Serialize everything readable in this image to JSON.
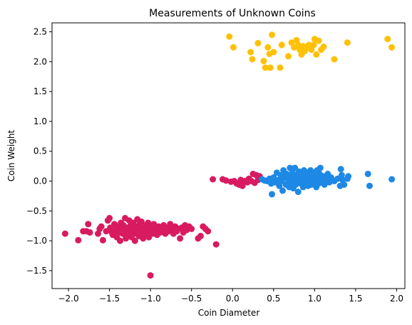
{
  "chart_data": {
    "type": "scatter",
    "title": "Measurements of Unknown Coins",
    "xlabel": "Coin Diameter",
    "ylabel": "Coin Weight",
    "xlim": [
      -2.2,
      2.1
    ],
    "ylim": [
      -1.8,
      2.65
    ],
    "xticks": [
      -2.0,
      -1.5,
      -1.0,
      -0.5,
      0.0,
      0.5,
      1.0,
      1.5,
      2.0
    ],
    "xtick_labels": [
      "−2.0",
      "−1.5",
      "−1.0",
      "−0.5",
      "0.0",
      "0.5",
      "1.0",
      "1.5",
      "2.0"
    ],
    "yticks": [
      -1.5,
      -1.0,
      -0.5,
      0.0,
      0.5,
      1.0,
      1.5,
      2.0,
      2.5
    ],
    "ytick_labels": [
      "−1.5",
      "−1.0",
      "−0.5",
      "0.0",
      "0.5",
      "1.0",
      "1.5",
      "2.0",
      "2.5"
    ],
    "grid": false,
    "series": [
      {
        "color": "#d81b60",
        "points": [
          [
            -2.04,
            -0.88
          ],
          [
            -1.88,
            -0.99
          ],
          [
            -1.82,
            -0.84
          ],
          [
            -1.78,
            -0.84
          ],
          [
            -1.76,
            -0.72
          ],
          [
            -1.74,
            -0.86
          ],
          [
            -1.64,
            -0.88
          ],
          [
            -1.62,
            -0.8
          ],
          [
            -1.6,
            -0.76
          ],
          [
            -1.58,
            -0.99
          ],
          [
            -1.54,
            -0.84
          ],
          [
            -1.52,
            -0.66
          ],
          [
            -1.5,
            -0.62
          ],
          [
            -1.49,
            -0.78
          ],
          [
            -1.47,
            -0.86
          ],
          [
            -1.46,
            -0.9
          ],
          [
            -1.44,
            -0.72
          ],
          [
            -1.43,
            -0.82
          ],
          [
            -1.41,
            -0.94
          ],
          [
            -1.4,
            -0.76
          ],
          [
            -1.39,
            -0.86
          ],
          [
            -1.37,
            -1.0
          ],
          [
            -1.36,
            -0.7
          ],
          [
            -1.35,
            -0.8
          ],
          [
            -1.34,
            -0.88
          ],
          [
            -1.33,
            -0.74
          ],
          [
            -1.31,
            -0.62
          ],
          [
            -1.3,
            -0.96
          ],
          [
            -1.29,
            -0.84
          ],
          [
            -1.28,
            -0.78
          ],
          [
            -1.27,
            -0.9
          ],
          [
            -1.26,
            -0.66
          ],
          [
            -1.25,
            -0.82
          ],
          [
            -1.24,
            -0.74
          ],
          [
            -1.23,
            -0.94
          ],
          [
            -1.22,
            -0.86
          ],
          [
            -1.21,
            -0.7
          ],
          [
            -1.2,
            -0.8
          ],
          [
            -1.19,
            -1.0
          ],
          [
            -1.18,
            -0.76
          ],
          [
            -1.17,
            -0.88
          ],
          [
            -1.16,
            -0.64
          ],
          [
            -1.15,
            -0.84
          ],
          [
            -1.14,
            -0.92
          ],
          [
            -1.13,
            -0.72
          ],
          [
            -1.12,
            -0.8
          ],
          [
            -1.11,
            -0.68
          ],
          [
            -1.1,
            -0.86
          ],
          [
            -1.09,
            -0.96
          ],
          [
            -1.08,
            -0.78
          ],
          [
            -1.07,
            -0.82
          ],
          [
            -1.06,
            -0.9
          ],
          [
            -1.05,
            -0.74
          ],
          [
            -1.04,
            -0.84
          ],
          [
            -1.03,
            -0.7
          ],
          [
            -1.02,
            -0.94
          ],
          [
            -1.01,
            -0.8
          ],
          [
            -1.0,
            -0.86
          ],
          [
            -0.98,
            -0.76
          ],
          [
            -0.97,
            -0.88
          ],
          [
            -0.96,
            -0.72
          ],
          [
            -0.94,
            -0.84
          ],
          [
            -0.93,
            -0.8
          ],
          [
            -0.92,
            -0.9
          ],
          [
            -0.9,
            -0.76
          ],
          [
            -0.88,
            -0.86
          ],
          [
            -0.86,
            -0.82
          ],
          [
            -0.84,
            -0.74
          ],
          [
            -0.82,
            -0.88
          ],
          [
            -0.8,
            -0.78
          ],
          [
            -0.78,
            -0.84
          ],
          [
            -0.76,
            -0.72
          ],
          [
            -0.74,
            -0.8
          ],
          [
            -0.72,
            -0.88
          ],
          [
            -0.7,
            -0.76
          ],
          [
            -0.68,
            -0.84
          ],
          [
            -0.66,
            -0.8
          ],
          [
            -0.64,
            -0.96
          ],
          [
            -0.62,
            -0.78
          ],
          [
            -0.6,
            -0.86
          ],
          [
            -0.58,
            -0.74
          ],
          [
            -0.56,
            -0.82
          ],
          [
            -0.53,
            -0.76
          ],
          [
            -0.5,
            -0.8
          ],
          [
            -0.42,
            -0.96
          ],
          [
            -0.39,
            -0.92
          ],
          [
            -0.36,
            -0.76
          ],
          [
            -0.33,
            -0.8
          ],
          [
            -0.3,
            -0.84
          ],
          [
            -0.2,
            -1.06
          ],
          [
            -1.0,
            -1.58
          ],
          [
            -0.24,
            0.03
          ],
          [
            -0.12,
            0.03
          ],
          [
            -0.08,
            0.01
          ],
          [
            -0.02,
            -0.01
          ],
          [
            0.02,
            0.0
          ],
          [
            0.05,
            -0.04
          ],
          [
            0.08,
            -0.06
          ],
          [
            0.1,
            0.02
          ],
          [
            0.12,
            -0.08
          ],
          [
            0.15,
            0.0
          ],
          [
            0.18,
            -0.02
          ],
          [
            0.2,
            0.04
          ],
          [
            0.23,
            0.0
          ],
          [
            0.25,
            0.12
          ],
          [
            0.27,
            -0.03
          ],
          [
            0.29,
            0.1
          ],
          [
            0.31,
            0.02
          ],
          [
            0.33,
            0.08
          ]
        ]
      },
      {
        "color": "#1e88e5",
        "points": [
          [
            0.36,
            0.03
          ],
          [
            0.39,
            0.01
          ],
          [
            0.42,
            0.0
          ],
          [
            0.45,
            0.04
          ],
          [
            0.47,
            -0.04
          ],
          [
            0.48,
            -0.22
          ],
          [
            0.5,
            0.06
          ],
          [
            0.52,
            -0.02
          ],
          [
            0.54,
            0.14
          ],
          [
            0.56,
            0.02
          ],
          [
            0.57,
            -0.08
          ],
          [
            0.59,
            0.1
          ],
          [
            0.6,
            0.0
          ],
          [
            0.61,
            -0.16
          ],
          [
            0.62,
            0.18
          ],
          [
            0.64,
            0.06
          ],
          [
            0.65,
            -0.06
          ],
          [
            0.66,
            0.12
          ],
          [
            0.68,
            0.02
          ],
          [
            0.69,
            -0.1
          ],
          [
            0.7,
            0.22
          ],
          [
            0.71,
            0.08
          ],
          [
            0.72,
            -0.02
          ],
          [
            0.73,
            0.14
          ],
          [
            0.74,
            -0.12
          ],
          [
            0.75,
            0.04
          ],
          [
            0.76,
            0.22
          ],
          [
            0.77,
            -0.06
          ],
          [
            0.78,
            0.1
          ],
          [
            0.79,
            0.0
          ],
          [
            0.8,
            -0.18
          ],
          [
            0.81,
            0.16
          ],
          [
            0.82,
            0.06
          ],
          [
            0.83,
            -0.04
          ],
          [
            0.84,
            0.12
          ],
          [
            0.85,
            0.02
          ],
          [
            0.86,
            -0.1
          ],
          [
            0.87,
            0.18
          ],
          [
            0.88,
            0.08
          ],
          [
            0.89,
            -0.02
          ],
          [
            0.9,
            0.14
          ],
          [
            0.91,
            0.04
          ],
          [
            0.92,
            -0.08
          ],
          [
            0.93,
            0.1
          ],
          [
            0.94,
            0.0
          ],
          [
            0.95,
            0.18
          ],
          [
            0.96,
            -0.06
          ],
          [
            0.97,
            0.06
          ],
          [
            0.98,
            0.14
          ],
          [
            0.99,
            -0.02
          ],
          [
            1.0,
            0.1
          ],
          [
            1.01,
            0.02
          ],
          [
            1.02,
            -0.1
          ],
          [
            1.03,
            0.18
          ],
          [
            1.04,
            0.06
          ],
          [
            1.05,
            -0.04
          ],
          [
            1.06,
            0.12
          ],
          [
            1.07,
            0.22
          ],
          [
            1.08,
            0.0
          ],
          [
            1.1,
            0.08
          ],
          [
            1.12,
            -0.06
          ],
          [
            1.14,
            0.04
          ],
          [
            1.16,
            0.12
          ],
          [
            1.18,
            -0.02
          ],
          [
            1.2,
            0.06
          ],
          [
            1.24,
            0.0
          ],
          [
            1.28,
            0.04
          ],
          [
            1.31,
            -0.08
          ],
          [
            1.32,
            0.2
          ],
          [
            1.33,
            0.1
          ],
          [
            1.34,
            0.02
          ],
          [
            1.36,
            -0.06
          ],
          [
            1.4,
            0.04
          ],
          [
            1.41,
            0.08
          ],
          [
            1.65,
            0.12
          ],
          [
            1.67,
            -0.08
          ],
          [
            1.94,
            0.03
          ]
        ]
      },
      {
        "color": "#ffc107",
        "points": [
          [
            -0.04,
            2.42
          ],
          [
            0.01,
            2.24
          ],
          [
            0.22,
            2.16
          ],
          [
            0.24,
            2.04
          ],
          [
            0.31,
            2.31
          ],
          [
            0.38,
            2.01
          ],
          [
            0.4,
            1.9
          ],
          [
            0.43,
            2.24
          ],
          [
            0.45,
            2.13
          ],
          [
            0.46,
            1.9
          ],
          [
            0.48,
            2.45
          ],
          [
            0.5,
            2.16
          ],
          [
            0.58,
            1.9
          ],
          [
            0.6,
            2.28
          ],
          [
            0.68,
            2.09
          ],
          [
            0.72,
            2.32
          ],
          [
            0.75,
            2.24
          ],
          [
            0.78,
            2.36
          ],
          [
            0.8,
            2.28
          ],
          [
            0.82,
            2.2
          ],
          [
            0.84,
            2.12
          ],
          [
            0.86,
            2.26
          ],
          [
            0.88,
            2.18
          ],
          [
            0.9,
            2.24
          ],
          [
            0.93,
            2.28
          ],
          [
            0.96,
            2.2
          ],
          [
            0.99,
            2.28
          ],
          [
            1.0,
            2.38
          ],
          [
            1.02,
            2.12
          ],
          [
            1.05,
            2.35
          ],
          [
            1.08,
            2.2
          ],
          [
            1.11,
            2.25
          ],
          [
            1.24,
            2.04
          ],
          [
            1.4,
            2.32
          ],
          [
            1.89,
            2.38
          ],
          [
            1.94,
            2.24
          ]
        ]
      }
    ]
  }
}
